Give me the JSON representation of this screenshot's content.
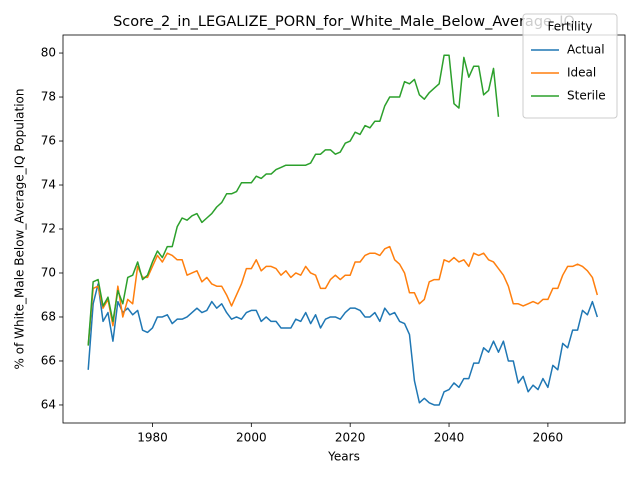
{
  "chart_data": {
    "type": "line",
    "title": "Score_2_in_LEGALIZE_PORN_for_White_Male_Below_Average_IQ",
    "xlabel": "Years",
    "ylabel": "% of White_Male Below_Average_IQ Population",
    "legend_title": "Fertility",
    "legend": "upper right",
    "x": [
      1967,
      1968,
      1969,
      1970,
      1971,
      1972,
      1973,
      1974,
      1975,
      1976,
      1977,
      1978,
      1979,
      1980,
      1981,
      1982,
      1983,
      1984,
      1985,
      1986,
      1987,
      1988,
      1989,
      1990,
      1991,
      1992,
      1993,
      1994,
      1995,
      1996,
      1997,
      1998,
      1999,
      2000,
      2001,
      2002,
      2003,
      2004,
      2005,
      2006,
      2007,
      2008,
      2009,
      2010,
      2011,
      2012,
      2013,
      2014,
      2015,
      2016,
      2017,
      2018,
      2019,
      2020,
      2021,
      2022,
      2023,
      2024,
      2025,
      2026,
      2027,
      2028,
      2029,
      2030,
      2031,
      2032,
      2033,
      2034,
      2035,
      2036,
      2037,
      2038,
      2039,
      2040,
      2041,
      2042,
      2043,
      2044,
      2045,
      2046,
      2047,
      2048,
      2049,
      2050,
      2051,
      2052,
      2053,
      2054,
      2055,
      2056,
      2057,
      2058,
      2059,
      2060,
      2061,
      2062,
      2063,
      2064,
      2065,
      2066,
      2067,
      2068,
      2069,
      2070
    ],
    "series": [
      {
        "name": "Actual",
        "color": "#1f77b4",
        "values": [
          65.6,
          68.6,
          69.5,
          67.8,
          68.2,
          66.9,
          68.7,
          68.2,
          68.4,
          68.1,
          68.3,
          67.4,
          67.3,
          67.5,
          68.0,
          68.0,
          68.1,
          67.7,
          67.9,
          67.9,
          68.0,
          68.2,
          68.4,
          68.2,
          68.3,
          68.7,
          68.4,
          68.6,
          68.2,
          67.9,
          68.0,
          67.9,
          68.2,
          68.3,
          68.3,
          67.8,
          68.0,
          67.8,
          67.8,
          67.5,
          67.5,
          67.5,
          67.9,
          67.8,
          68.2,
          67.7,
          68.1,
          67.5,
          67.9,
          68.0,
          68.0,
          67.9,
          68.2,
          68.4,
          68.4,
          68.3,
          68.0,
          68.0,
          68.2,
          67.8,
          68.4,
          68.1,
          68.2,
          67.8,
          67.7,
          67.2,
          65.1,
          64.1,
          64.3,
          64.1,
          64.0,
          64.0,
          64.6,
          64.7,
          65.0,
          64.8,
          65.2,
          65.2,
          65.9,
          65.9,
          66.6,
          66.4,
          66.9,
          66.4,
          66.9,
          66.0,
          66.0,
          65.0,
          65.3,
          64.6,
          64.9,
          64.7,
          65.2,
          64.8,
          65.8,
          65.6,
          66.8,
          66.6,
          67.4,
          67.4,
          68.3,
          68.1,
          68.7,
          68.0
        ]
      },
      {
        "name": "Ideal",
        "color": "#ff7f0e",
        "values": [
          66.7,
          69.3,
          69.4,
          68.4,
          68.8,
          67.6,
          69.4,
          68.0,
          68.8,
          68.6,
          70.3,
          69.8,
          69.8,
          70.3,
          70.8,
          70.5,
          70.9,
          70.8,
          70.6,
          70.6,
          69.9,
          70.0,
          70.1,
          69.6,
          69.8,
          69.5,
          69.4,
          69.4,
          69.0,
          68.5,
          69.0,
          69.5,
          70.2,
          70.2,
          70.6,
          70.1,
          70.3,
          70.3,
          70.2,
          69.9,
          70.1,
          69.8,
          70.0,
          69.9,
          70.3,
          70.0,
          69.9,
          69.3,
          69.3,
          69.7,
          69.9,
          69.7,
          69.9,
          69.9,
          70.5,
          70.5,
          70.8,
          70.9,
          70.9,
          70.8,
          71.1,
          71.2,
          70.6,
          70.4,
          70.0,
          69.1,
          69.1,
          68.6,
          68.8,
          69.6,
          69.7,
          69.7,
          70.6,
          70.5,
          70.7,
          70.5,
          70.6,
          70.3,
          70.9,
          70.8,
          70.9,
          70.6,
          70.5,
          70.2,
          69.9,
          69.4,
          68.6,
          68.6,
          68.5,
          68.6,
          68.7,
          68.6,
          68.8,
          68.8,
          69.3,
          69.3,
          69.9,
          70.3,
          70.3,
          70.4,
          70.3,
          70.1,
          69.8,
          69.0
        ]
      },
      {
        "name": "Sterile",
        "color": "#2ca02c",
        "values": [
          66.7,
          69.6,
          69.7,
          68.5,
          68.9,
          67.8,
          69.2,
          68.6,
          69.8,
          69.9,
          70.5,
          69.7,
          69.9,
          70.5,
          71.0,
          70.7,
          71.2,
          71.2,
          72.1,
          72.5,
          72.4,
          72.6,
          72.7,
          72.3,
          72.5,
          72.7,
          73.0,
          73.2,
          73.6,
          73.6,
          73.7,
          74.1,
          74.1,
          74.1,
          74.4,
          74.3,
          74.5,
          74.5,
          74.7,
          74.8,
          74.9,
          74.9,
          74.9,
          74.9,
          74.9,
          75.0,
          75.4,
          75.4,
          75.6,
          75.6,
          75.4,
          75.5,
          75.9,
          76.0,
          76.4,
          76.3,
          76.7,
          76.6,
          76.9,
          76.9,
          77.6,
          78.0,
          78.0,
          78.0,
          78.7,
          78.6,
          78.8,
          78.1,
          77.9,
          78.2,
          78.4,
          78.6,
          79.9,
          79.9,
          77.7,
          77.5,
          79.8,
          78.9,
          79.4,
          79.4,
          78.1,
          78.3,
          79.3,
          77.1,
          null,
          null,
          null,
          null,
          null,
          null,
          null,
          null,
          null,
          null,
          null,
          null,
          null,
          null,
          null,
          null,
          null,
          null,
          null,
          null
        ]
      }
    ],
    "xlim": [
      1961.9,
      2075.6
    ],
    "ylim": [
      63.18,
      80.82
    ],
    "xticks": [
      1980,
      2000,
      2020,
      2040,
      2060
    ],
    "yticks": [
      64,
      66,
      68,
      70,
      72,
      74,
      76,
      78,
      80
    ]
  }
}
